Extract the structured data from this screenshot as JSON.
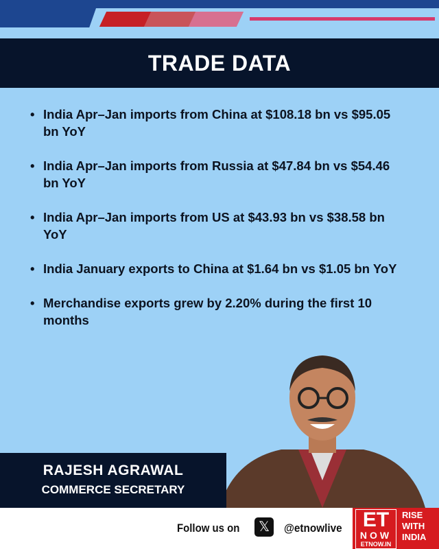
{
  "header": {
    "title": "TRADE DATA",
    "colors": {
      "dark_navy": "#07142b",
      "light_blue": "#9dd1f6",
      "accent_pink": "#d63a6b",
      "brand_red": "#d61b1f"
    }
  },
  "bullets": [
    "India Apr–Jan imports from China at $108.18 bn vs $95.05 bn YoY",
    "India Apr–Jan imports from Russia at $47.84 bn vs $54.46 bn YoY",
    "India Apr–Jan imports from US at $43.93 bn vs $38.58 bn YoY",
    "India January exports to China at $1.64 bn vs $1.05 bn YoY",
    "Merchandise exports grew by 2.20% during the first 10 months"
  ],
  "person": {
    "name": "RAJESH AGRAWAL",
    "role": "COMMERCE SECRETARY"
  },
  "footer": {
    "follow": "Follow us on",
    "social_icon": "x-logo-icon",
    "handle": "@etnowlive"
  },
  "logo": {
    "et": "ET",
    "now": "NOW",
    "web": "ETNOW.IN",
    "tagline": [
      "RISE",
      "WITH",
      "INDIA"
    ]
  }
}
